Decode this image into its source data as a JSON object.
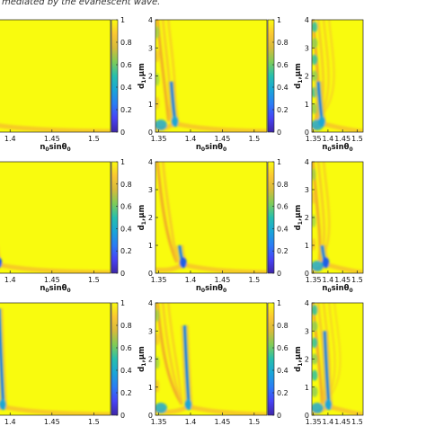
{
  "header": {
    "caption": "mediated by the evanescent wave."
  },
  "chart_data": [
    {
      "type": "heatmap",
      "panel": "a",
      "xlabel": "n0sinθ0",
      "xlabel_main": "n",
      "xlabel_sub1": "0",
      "xlabel_mid": "sinθ",
      "xlabel_sub2": "0",
      "ylabel": "",
      "xlim": [
        1.345,
        1.52
      ],
      "ylim": [
        0,
        4
      ],
      "xticks": [
        "1.35",
        "1.4",
        "1.45",
        "1.5"
      ],
      "yticks": [],
      "colorbar_ticks": [
        "0",
        "0.2",
        "0.4",
        "0.6",
        "0.8",
        "1"
      ],
      "clim": [
        0,
        1
      ],
      "colormap": "parula",
      "features": {
        "dip_x": 1.372,
        "dip_ymax": 1.8,
        "left_bands": 2,
        "bottom_glow": false
      }
    },
    {
      "type": "heatmap",
      "panel": "b",
      "xlabel": "n0sinθ0",
      "xlabel_main": "n",
      "xlabel_sub1": "0",
      "xlabel_mid": "sinθ",
      "xlabel_sub2": "0",
      "ylabel": "d1,μm",
      "ylabel_main": "d",
      "ylabel_sub": "1",
      "ylabel_rest": ",μm",
      "xlim": [
        1.345,
        1.52
      ],
      "ylim": [
        0,
        4
      ],
      "xticks": [
        "1.35",
        "1.4",
        "1.45",
        "1.5"
      ],
      "yticks": [
        "0",
        "1",
        "2",
        "3",
        "4"
      ],
      "colorbar_ticks": [
        "0",
        "0.2",
        "0.4",
        "0.6",
        "0.8",
        "1"
      ],
      "clim": [
        0,
        1
      ],
      "colormap": "parula",
      "features": {
        "dip_x": 1.374,
        "dip_ymax": 1.8,
        "left_bands": 3,
        "bottom_glow": true
      }
    },
    {
      "type": "heatmap",
      "panel": "c",
      "xlabel": "n0sinθ0",
      "xlabel_main": "n",
      "xlabel_sub1": "0",
      "xlabel_mid": "sinθ",
      "xlabel_sub2": "0",
      "ylabel": "d1,μm",
      "ylabel_main": "d",
      "ylabel_sub": "1",
      "ylabel_rest": ",μm",
      "xlim": [
        1.345,
        1.52
      ],
      "ylim": [
        0,
        4
      ],
      "xticks": [
        "1.35",
        "1.4",
        "1.45",
        "1.5"
      ],
      "yticks": [
        "0",
        "1",
        "2",
        "3",
        "4"
      ],
      "colorbar_ticks": [],
      "clim": [
        0,
        1
      ],
      "colormap": "parula",
      "features": {
        "dip_x": 1.376,
        "dip_ymax": 1.8,
        "left_bands": 4,
        "bottom_glow": true
      }
    },
    {
      "type": "heatmap",
      "panel": "d",
      "xlabel": "n0sinθ0",
      "xlabel_main": "n",
      "xlabel_sub1": "0",
      "xlabel_mid": "sinθ",
      "xlabel_sub2": "0",
      "ylabel": "",
      "xlim": [
        1.345,
        1.52
      ],
      "ylim": [
        0,
        4
      ],
      "xticks": [
        "1.35",
        "1.4",
        "1.45",
        "1.5"
      ],
      "yticks": [],
      "colorbar_ticks": [
        "0",
        "0.2",
        "0.4",
        "0.6",
        "0.8",
        "1"
      ],
      "clim": [
        0,
        1
      ],
      "colormap": "parula",
      "features": {
        "dip_x": 1.385,
        "dip_ymax": 1.0,
        "left_bands": 2,
        "bottom_glow": false
      }
    },
    {
      "type": "heatmap",
      "panel": "e",
      "xlabel": "n0sinθ0",
      "xlabel_main": "n",
      "xlabel_sub1": "0",
      "xlabel_mid": "sinθ",
      "xlabel_sub2": "0",
      "ylabel": "d1,μm",
      "ylabel_main": "d",
      "ylabel_sub": "1",
      "ylabel_rest": ",μm",
      "xlim": [
        1.345,
        1.52
      ],
      "ylim": [
        0,
        4
      ],
      "xticks": [
        "1.35",
        "1.4",
        "1.45",
        "1.5"
      ],
      "yticks": [
        "0",
        "1",
        "2",
        "3",
        "4"
      ],
      "colorbar_ticks": [
        "0",
        "0.2",
        "0.4",
        "0.6",
        "0.8",
        "1"
      ],
      "clim": [
        0,
        1
      ],
      "colormap": "parula",
      "features": {
        "dip_x": 1.387,
        "dip_ymax": 1.0,
        "left_bands": 2,
        "bottom_glow": false
      }
    },
    {
      "type": "heatmap",
      "panel": "f",
      "xlabel": "n0sinθ0",
      "xlabel_main": "n",
      "xlabel_sub1": "0",
      "xlabel_mid": "sinθ",
      "xlabel_sub2": "0",
      "ylabel": "d1,μm",
      "ylabel_main": "d",
      "ylabel_sub": "1",
      "ylabel_rest": ",μm",
      "xlim": [
        1.345,
        1.52
      ],
      "ylim": [
        0,
        4
      ],
      "xticks": [
        "1.35",
        "1.4",
        "1.45",
        "1.5"
      ],
      "yticks": [
        "0",
        "1",
        "2",
        "3",
        "4"
      ],
      "colorbar_ticks": [],
      "clim": [
        0,
        1
      ],
      "colormap": "parula",
      "features": {
        "dip_x": 1.389,
        "dip_ymax": 1.0,
        "left_bands": 3,
        "bottom_glow": true
      }
    },
    {
      "type": "heatmap",
      "panel": "g",
      "xlabel": "n0sinθ0",
      "xlabel_main": "n",
      "xlabel_sub1": "0",
      "xlabel_mid": "sinθ",
      "xlabel_sub2": "0",
      "ylabel": "",
      "xlim": [
        1.345,
        1.52
      ],
      "ylim": [
        0,
        4
      ],
      "xticks": [
        "1.35",
        "1.4",
        "1.45",
        "1.5"
      ],
      "yticks": [],
      "colorbar_ticks": [
        "0",
        "0.2",
        "0.4",
        "0.6",
        "0.8",
        "1"
      ],
      "clim": [
        0,
        1
      ],
      "colormap": "parula",
      "features": {
        "dip_x": 1.39,
        "dip_ymax": 3.8,
        "left_bands": 3,
        "bottom_glow": false
      }
    },
    {
      "type": "heatmap",
      "panel": "h",
      "xlabel": "n0sinθ0",
      "xlabel_main": "n",
      "xlabel_sub1": "0",
      "xlabel_mid": "sinθ",
      "xlabel_sub2": "0",
      "ylabel": "d1,μm",
      "ylabel_main": "d",
      "ylabel_sub": "1",
      "ylabel_rest": ",μm",
      "xlim": [
        1.345,
        1.52
      ],
      "ylim": [
        0,
        4
      ],
      "xticks": [
        "1.35",
        "1.4",
        "1.45",
        "1.5"
      ],
      "yticks": [
        "0",
        "1",
        "2",
        "3",
        "4"
      ],
      "colorbar_ticks": [
        "0",
        "0.2",
        "0.4",
        "0.6",
        "0.8",
        "1"
      ],
      "clim": [
        0,
        1
      ],
      "colormap": "parula",
      "features": {
        "dip_x": 1.395,
        "dip_ymax": 3.2,
        "left_bands": 3,
        "bottom_glow": true
      }
    },
    {
      "type": "heatmap",
      "panel": "i",
      "xlabel": "n0sinθ0",
      "xlabel_main": "n",
      "xlabel_sub1": "0",
      "xlabel_mid": "sinθ",
      "xlabel_sub2": "0",
      "ylabel": "d1,μm",
      "ylabel_main": "d",
      "ylabel_sub": "1",
      "ylabel_rest": ",μm",
      "xlim": [
        1.345,
        1.52
      ],
      "ylim": [
        0,
        4
      ],
      "xticks": [
        "1.35",
        "1.4",
        "1.45",
        "1.5"
      ],
      "yticks": [
        "0",
        "1",
        "2",
        "3",
        "4"
      ],
      "colorbar_ticks": [],
      "clim": [
        0,
        1
      ],
      "colormap": "parula",
      "features": {
        "dip_x": 1.398,
        "dip_ymax": 3.0,
        "left_bands": 5,
        "bottom_glow": true
      }
    }
  ]
}
